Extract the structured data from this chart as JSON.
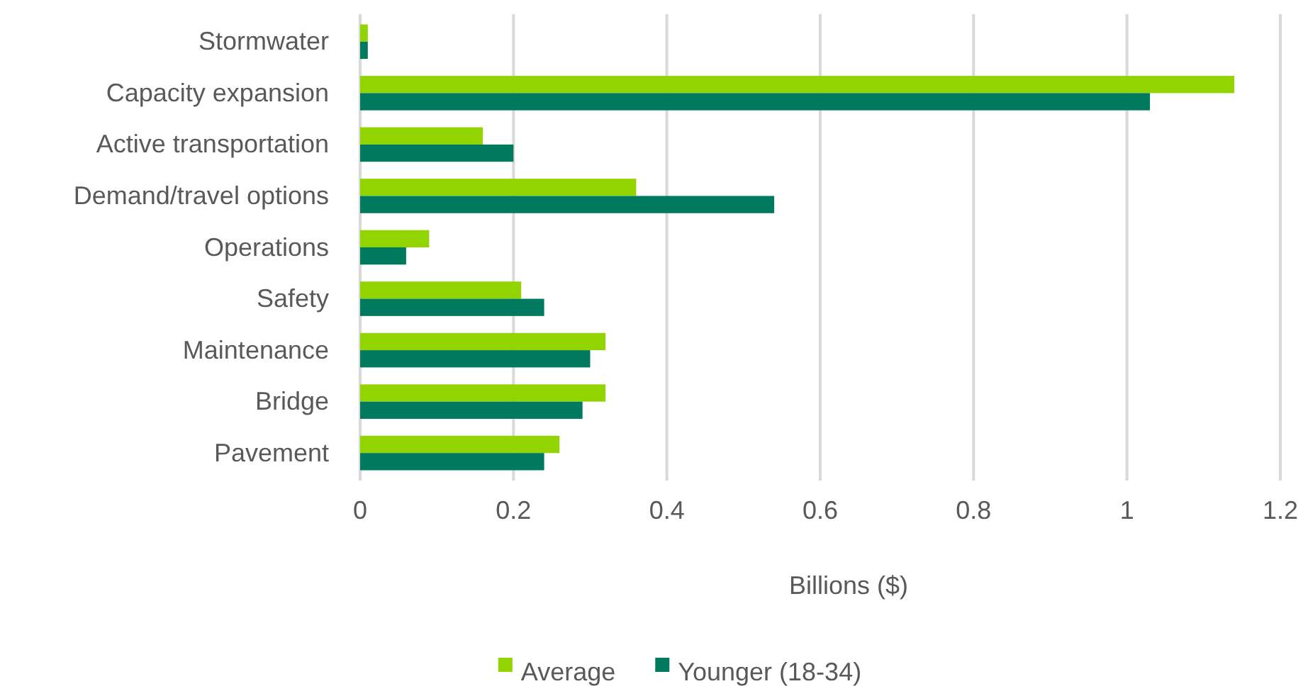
{
  "chart_data": {
    "type": "bar",
    "orientation": "horizontal",
    "xlabel": "Billions ($)",
    "categories": [
      "Stormwater",
      "Capacity expansion",
      "Active transportation",
      "Demand/travel options",
      "Operations",
      "Safety",
      "Maintenance",
      "Bridge",
      "Pavement"
    ],
    "series": [
      {
        "name": "Average",
        "color": "#92d400",
        "values": [
          0.01,
          1.14,
          0.16,
          0.36,
          0.09,
          0.21,
          0.32,
          0.32,
          0.26
        ]
      },
      {
        "name": "Younger (18-34)",
        "color": "#007a5e",
        "values": [
          0.01,
          1.03,
          0.2,
          0.54,
          0.06,
          0.24,
          0.3,
          0.29,
          0.24
        ]
      }
    ],
    "xlim": [
      0,
      1.2
    ],
    "xticks": [
      0,
      0.2,
      0.4,
      0.6,
      0.8,
      1,
      1.2
    ],
    "grid": "x",
    "legend": "bottom"
  }
}
